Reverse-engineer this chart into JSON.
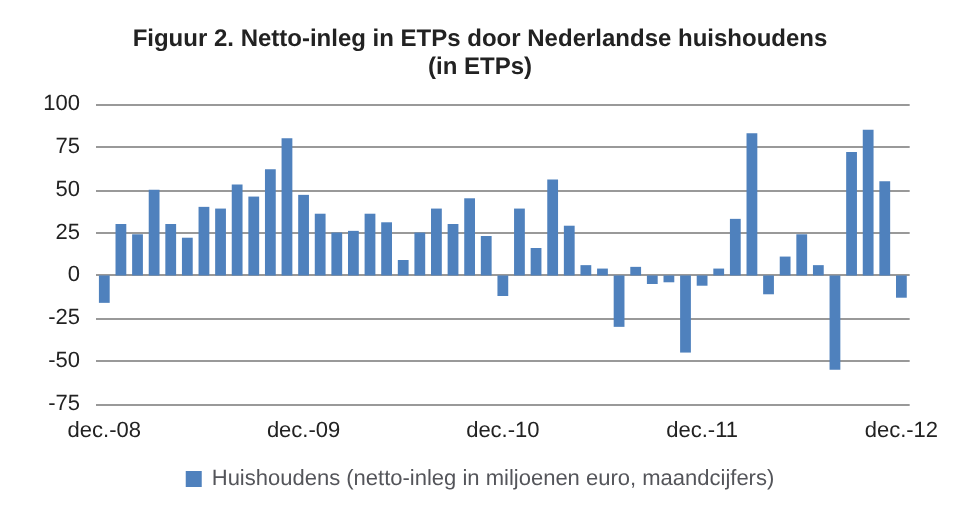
{
  "chart_data": {
    "type": "bar",
    "title": "Figuur 2. Netto-inleg in ETPs door Nederlandse huishoudens",
    "subtitle": "(in ETPs)",
    "categories": [
      "dec.-08",
      null,
      null,
      null,
      null,
      null,
      null,
      null,
      null,
      null,
      null,
      null,
      "dec.-09",
      null,
      null,
      null,
      null,
      null,
      null,
      null,
      null,
      null,
      null,
      null,
      "dec.-10",
      null,
      null,
      null,
      null,
      null,
      null,
      null,
      null,
      null,
      null,
      null,
      "dec.-11",
      null,
      null,
      null,
      null,
      null,
      null,
      null,
      null,
      null,
      null,
      null,
      "dec.-12"
    ],
    "series": [
      {
        "name": "Huishoudens (netto-inleg in miljoenen euro, maandcijfers)",
        "color": "#4f81bd",
        "values": [
          -16,
          30,
          24,
          50,
          30,
          22,
          40,
          39,
          53,
          46,
          62,
          80,
          47,
          36,
          25,
          26,
          36,
          31,
          9,
          25,
          39,
          30,
          45,
          23,
          -12,
          39,
          16,
          56,
          29,
          6,
          4,
          -30,
          5,
          -5,
          -4,
          -45,
          -6,
          4,
          33,
          83,
          -11,
          11,
          24,
          6,
          -55,
          72,
          85,
          55,
          -13
        ]
      }
    ],
    "ylim": [
      -75,
      100
    ],
    "yticks": [
      -75,
      -50,
      -25,
      0,
      25,
      50,
      75,
      100
    ],
    "grid": "y",
    "legend": "bottom"
  }
}
